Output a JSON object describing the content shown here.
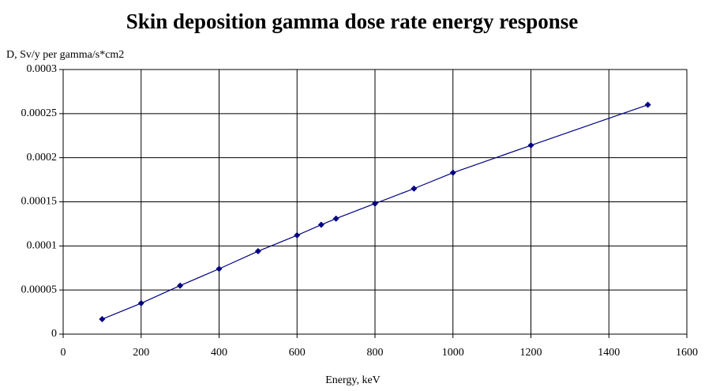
{
  "chart_data": {
    "type": "line",
    "title": "Skin deposition gamma dose rate energy response",
    "y_label": "D, Sv/y per gamma/s*cm2",
    "x_label": "Energy, keV",
    "x": [
      100,
      200,
      300,
      400,
      500,
      600,
      662,
      700,
      800,
      900,
      1000,
      1200,
      1500
    ],
    "series": [
      {
        "color": "#000080",
        "values": [
          1.7e-05,
          3.5e-05,
          5.5e-05,
          7.4e-05,
          9.4e-05,
          0.000112,
          0.000124,
          0.000131,
          0.000148,
          0.000165,
          0.000183,
          0.000214,
          0.00026
        ]
      }
    ],
    "xlim": [
      0,
      1600
    ],
    "xticks": [
      0,
      200,
      400,
      600,
      800,
      1000,
      1200,
      1400,
      1600
    ],
    "ylim": [
      0,
      0.0003
    ],
    "yticks": [
      0,
      {
        "value": 5e-05,
        "label": "0.00005"
      },
      0.0001,
      0.00015,
      0.0002,
      0.00025,
      0.0003
    ],
    "grid": true
  }
}
